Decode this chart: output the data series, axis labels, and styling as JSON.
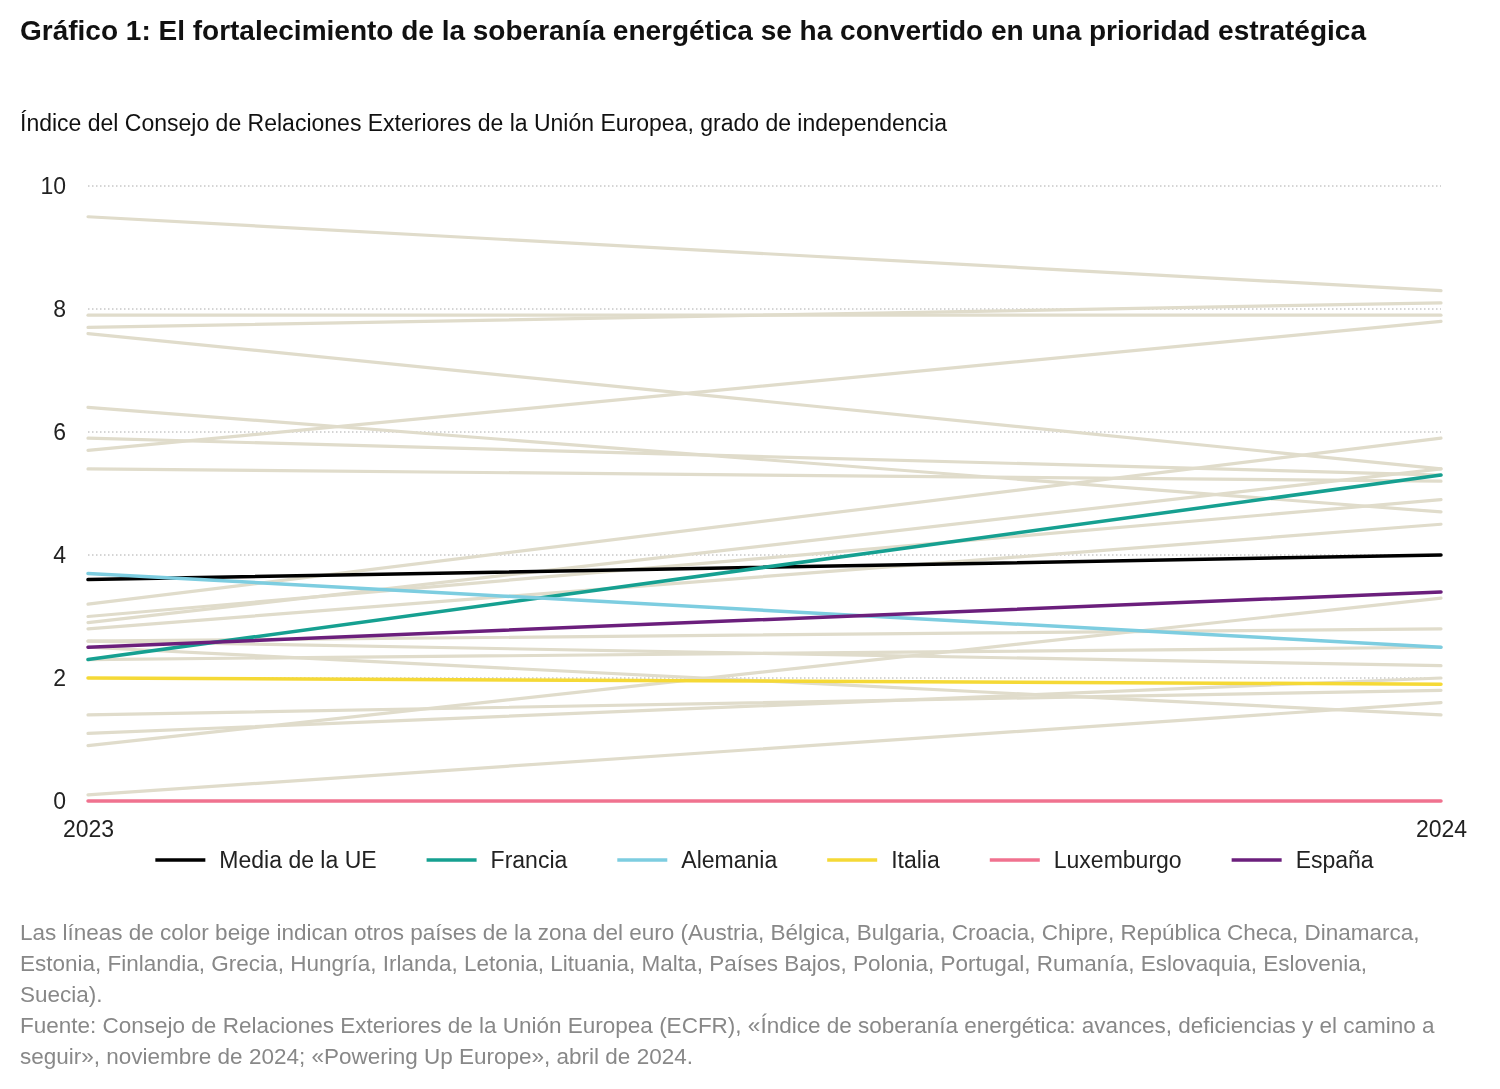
{
  "chart_data": {
    "type": "line",
    "title": "Gráfico 1: El fortalecimiento de la soberanía energética se ha convertido en una prioridad estratégica",
    "subtitle": "Índice del Consejo de Relaciones Exteriores de la Unión Europea, grado de independencia",
    "x": [
      2023,
      2024
    ],
    "xlim": [
      2023,
      2024
    ],
    "xticks": [
      2023,
      2024
    ],
    "ylim": [
      0,
      10
    ],
    "yticks": [
      0,
      2,
      4,
      6,
      8,
      10
    ],
    "grid": "y",
    "legend": "bottom",
    "series": [
      {
        "color": "#e0dccb",
        "values": [
          9.5,
          8.3
        ]
      },
      {
        "color": "#e0dccb",
        "values": [
          7.9,
          7.9
        ]
      },
      {
        "color": "#e0dccb",
        "values": [
          7.7,
          8.1
        ]
      },
      {
        "color": "#e0dccb",
        "values": [
          7.6,
          5.4
        ]
      },
      {
        "color": "#e0dccb",
        "values": [
          6.4,
          4.7
        ]
      },
      {
        "color": "#e0dccb",
        "values": [
          5.9,
          5.3
        ]
      },
      {
        "color": "#e0dccb",
        "values": [
          5.7,
          7.8
        ]
      },
      {
        "color": "#e0dccb",
        "values": [
          5.4,
          5.2
        ]
      },
      {
        "color": "#e0dccb",
        "values": [
          3.2,
          5.9
        ]
      },
      {
        "color": "#e0dccb",
        "values": [
          3.0,
          4.9
        ]
      },
      {
        "color": "#e0dccb",
        "values": [
          2.9,
          5.4
        ]
      },
      {
        "color": "#e0dccb",
        "values": [
          2.8,
          4.5
        ]
      },
      {
        "color": "#e0dccb",
        "values": [
          2.6,
          2.8
        ]
      },
      {
        "color": "#e0dccb",
        "values": [
          2.6,
          2.2
        ]
      },
      {
        "color": "#e0dccb",
        "values": [
          2.5,
          1.4
        ]
      },
      {
        "color": "#e0dccb",
        "values": [
          2.3,
          2.5
        ]
      },
      {
        "color": "#e0dccb",
        "values": [
          1.4,
          1.8
        ]
      },
      {
        "color": "#e0dccb",
        "values": [
          1.1,
          2.0
        ]
      },
      {
        "color": "#e0dccb",
        "values": [
          0.9,
          3.3
        ]
      },
      {
        "color": "#e0dccb",
        "values": [
          0.1,
          1.6
        ]
      },
      {
        "name": "Media de la UE",
        "color": "#000000",
        "values": [
          3.6,
          4.0
        ]
      },
      {
        "name": "Francia",
        "color": "#16a091",
        "values": [
          2.3,
          5.3
        ]
      },
      {
        "name": "Alemania",
        "color": "#7dcde0",
        "values": [
          3.7,
          2.5
        ]
      },
      {
        "name": "Italia",
        "color": "#f5d936",
        "values": [
          2.0,
          1.9
        ]
      },
      {
        "name": "Luxemburgo",
        "color": "#f0728f",
        "values": [
          0,
          0
        ]
      },
      {
        "name": "España",
        "color": "#6b1f7c",
        "values": [
          2.5,
          3.4
        ]
      }
    ],
    "annotations": [
      "Las líneas de color beige indican otros países de la zona del euro (Austria, Bélgica, Bulgaria, Croacia, Chipre, República Checa, Dinamarca, Estonia, Finlandia, Grecia, Hungría, Irlanda, Letonia, Lituania, Malta, Países Bajos, Polonia, Portugal, Rumanía, Eslovaquia, Eslovenia, Suecia).",
      "Fuente: Consejo de Relaciones Exteriores de la Unión Europea (ECFR), «Índice de soberanía energética: avances, deficiencias y el camino a seguir», noviembre de 2024; «Powering Up Europe», abril de 2024."
    ]
  }
}
